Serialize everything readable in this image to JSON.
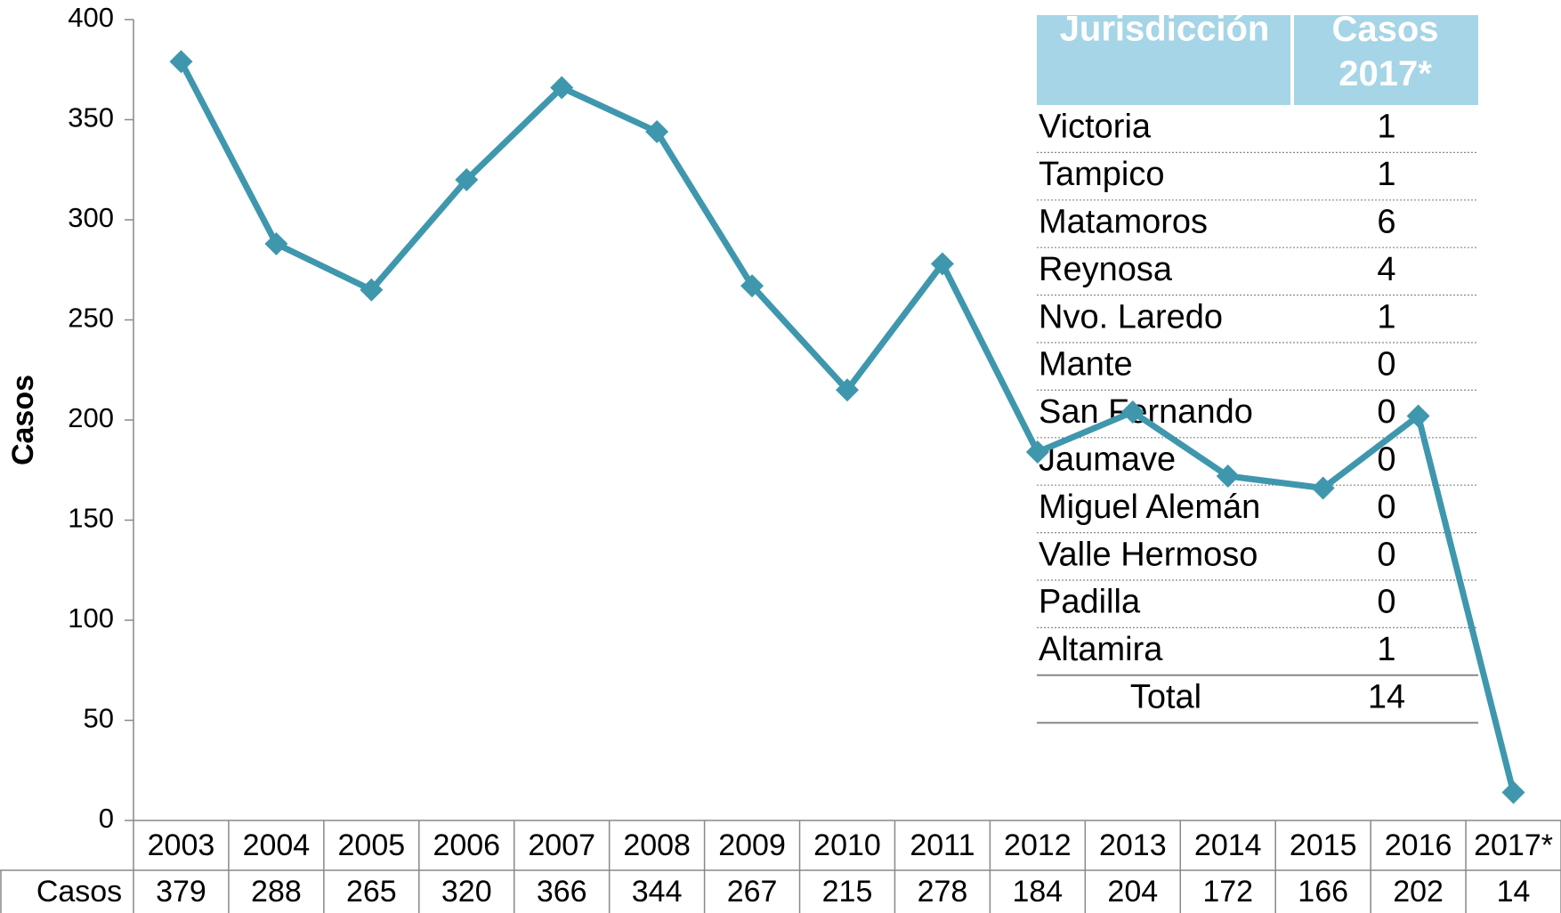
{
  "chart_data": {
    "type": "line",
    "y_label": "Casos",
    "categories": [
      "2003",
      "2004",
      "2005",
      "2006",
      "2007",
      "2008",
      "2009",
      "2010",
      "2011",
      "2012",
      "2013",
      "2014",
      "2015",
      "2016",
      "2017*"
    ],
    "series": [
      {
        "name": "Casos",
        "color": "#3f97ad",
        "values": [
          379,
          288,
          265,
          320,
          366,
          344,
          267,
          215,
          278,
          184,
          204,
          172,
          166,
          202,
          14
        ]
      }
    ],
    "ylim": [
      0,
      400
    ],
    "yticks": [
      0,
      50,
      100,
      150,
      200,
      250,
      300,
      350,
      400
    ]
  },
  "table": {
    "header": [
      "Jurisdicción",
      "Casos 2017*"
    ],
    "rows": [
      [
        "Victoria",
        1
      ],
      [
        "Tampico",
        1
      ],
      [
        "Matamoros",
        6
      ],
      [
        "Reynosa",
        4
      ],
      [
        "Nvo. Laredo",
        1
      ],
      [
        "Mante",
        0
      ],
      [
        "San Fernando",
        0
      ],
      [
        "Jaumave",
        0
      ],
      [
        "Miguel Alemán",
        0
      ],
      [
        "Valle Hermoso",
        0
      ],
      [
        "Padilla",
        0
      ],
      [
        "Altamira",
        1
      ]
    ],
    "total": [
      "Total",
      14
    ]
  }
}
